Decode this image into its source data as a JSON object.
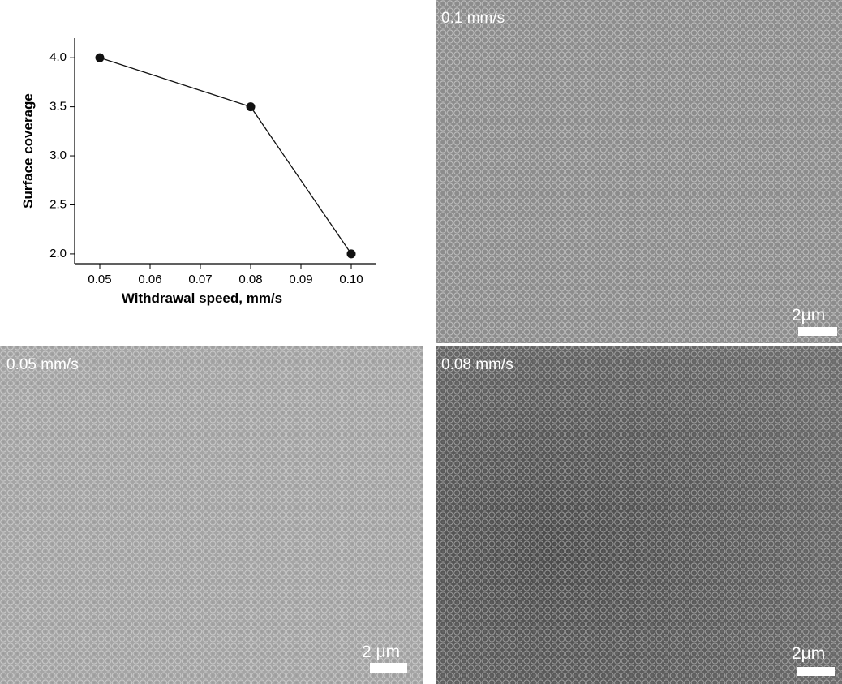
{
  "chart_data": {
    "type": "line",
    "x_label": "Withdrawal speed, mm/s",
    "y_label": "Surface coverage",
    "x": [
      0.05,
      0.08,
      0.1
    ],
    "series": [
      {
        "color": "#111111",
        "values": [
          4.0,
          3.5,
          2.0
        ]
      }
    ],
    "xlim": [
      0.045,
      0.105
    ],
    "ylim": [
      1.9,
      4.2
    ],
    "xticks": [
      0.05,
      0.06,
      0.07,
      0.08,
      0.09,
      {
        "value": 0.1,
        "label": "0.10"
      }
    ],
    "yticks": [
      {
        "value": 2,
        "label": "2.0"
      },
      2.5,
      {
        "value": 3,
        "label": "3.0"
      },
      3.5,
      {
        "value": 4,
        "label": "4.0"
      }
    ],
    "grid": false
  },
  "panels": [
    {
      "label": "0.1 mm/s",
      "scale_label": "2μm"
    },
    {
      "label": "0.05 mm/s",
      "scale_label": "2 μm"
    },
    {
      "label": "0.08 mm/s",
      "scale_label": "2μm"
    }
  ]
}
